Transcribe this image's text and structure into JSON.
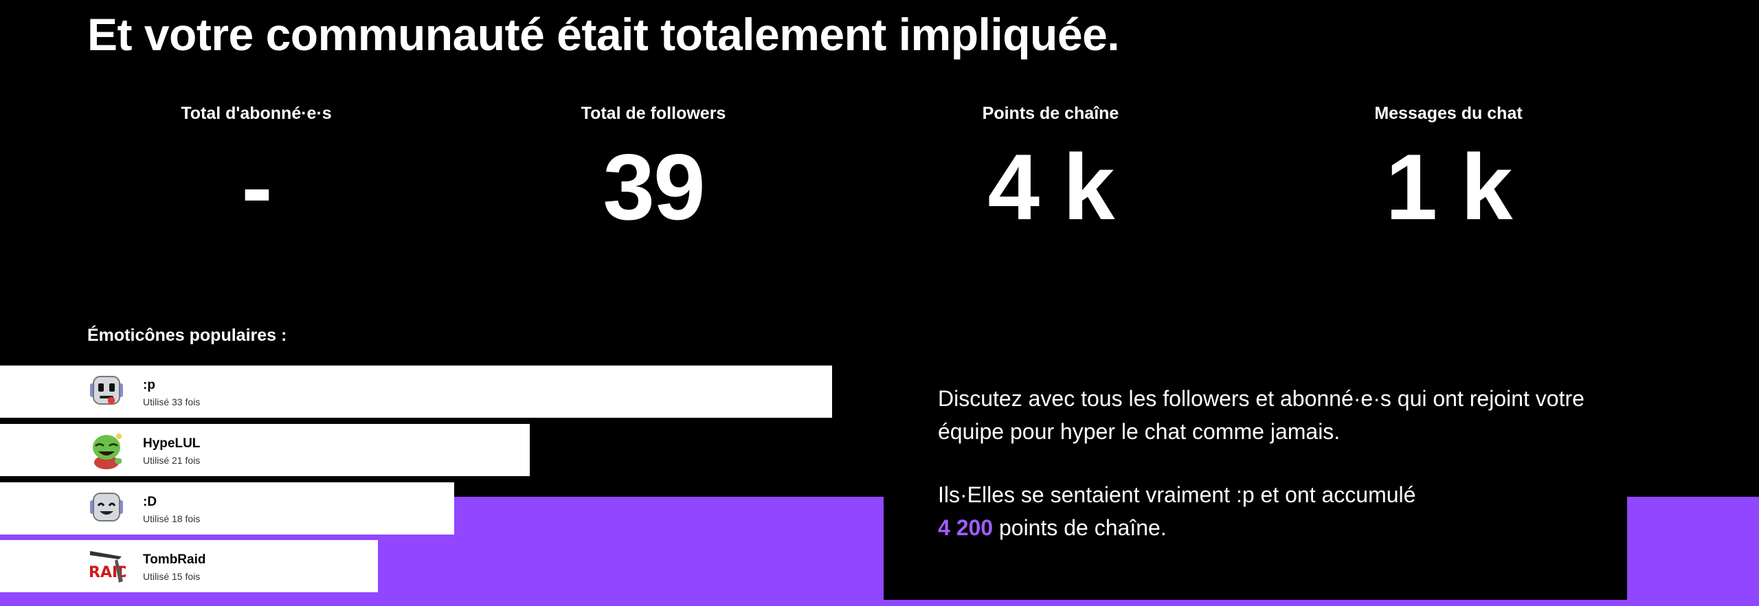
{
  "headline": "Et votre communauté était totalement impliquée.",
  "stats": [
    {
      "label": "Total d'abonné·e·s",
      "value": "-"
    },
    {
      "label": "Total de followers",
      "value": "39"
    },
    {
      "label": "Points de chaîne",
      "value": "4 k"
    },
    {
      "label": "Messages du chat",
      "value": "1 k"
    }
  ],
  "emotes": {
    "heading": "Émoticônes populaires :",
    "items": [
      {
        "name": ":p",
        "usage": "Utilisé 33 fois",
        "uses": 33
      },
      {
        "name": "HypeLUL",
        "usage": "Utilisé 21 fois",
        "uses": 21
      },
      {
        "name": ":D",
        "usage": "Utilisé 18 fois",
        "uses": 18
      },
      {
        "name": "TombRaid",
        "usage": "Utilisé 15 fois",
        "uses": 15,
        "icon_text": "RAID"
      }
    ]
  },
  "info": {
    "paragraph1": "Discutez avec tous les followers et abonné·e·s qui ont rejoint votre équipe pour hyper le chat comme jamais.",
    "paragraph2_line1": "Ils·Elles se sentaient vraiment :p et ont accumulé",
    "points_value": "4 200",
    "paragraph2_suffix": " points de chaîne."
  },
  "colors": {
    "accent": "#9147ff",
    "accent_text": "#9f5dff",
    "background": "#000000",
    "bar": "#ffffff"
  }
}
